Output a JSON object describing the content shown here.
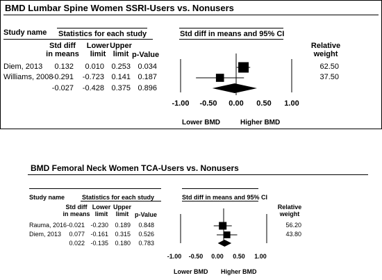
{
  "chart_data": [
    {
      "type": "forest",
      "title": "BMD Lumbar Spine Women SSRI-Users vs. Nonusers",
      "headers": {
        "study_name": "Study name",
        "stats": "Statistics for each study",
        "plot": "Std diff in means and 95% CI",
        "std_diff": [
          "Std diff",
          "in means"
        ],
        "lower": [
          "Lower",
          "limit"
        ],
        "upper": [
          "Upper",
          "limit"
        ],
        "pvalue": "p-Value",
        "weight": [
          "Relative",
          "weight"
        ]
      },
      "studies": [
        {
          "name": "Diem, 2013",
          "std_diff": "0.132",
          "lower": "0.010",
          "upper": "0.253",
          "p": "0.034",
          "weight": "62.50",
          "x": 0.132,
          "lo": 0.01,
          "hi": 0.253,
          "w": 62.5
        },
        {
          "name": "Williams, 2008",
          "std_diff": "-0.291",
          "lower": "-0.723",
          "upper": "0.141",
          "p": "0.187",
          "weight": "37.50",
          "x": -0.291,
          "lo": -0.723,
          "hi": 0.141,
          "w": 37.5
        }
      ],
      "pooled": {
        "std_diff": "-0.027",
        "lower": "-0.428",
        "upper": "0.375",
        "p": "0.896",
        "x": -0.027,
        "lo": -0.428,
        "hi": 0.375
      },
      "xticks": [
        "-1.00",
        "-0.50",
        "0.00",
        "0.50",
        "1.00"
      ],
      "xlim": [
        -1,
        1
      ],
      "favours_left": "Lower BMD",
      "favours_right": "Higher BMD"
    },
    {
      "type": "forest",
      "title": "BMD Femoral Neck Women TCA-Users vs. Nonusers",
      "headers": {
        "study_name": "Study name",
        "stats": "Statistics for each study",
        "plot": "Std diff in means and 95% CI",
        "std_diff": [
          "Std diff",
          "in means"
        ],
        "lower": [
          "Lower",
          "limit"
        ],
        "upper": [
          "Upper",
          "limit"
        ],
        "pvalue": "p-Value",
        "weight": [
          "Relative",
          "weight"
        ]
      },
      "studies": [
        {
          "name": "Rauma, 2016",
          "std_diff": "-0.021",
          "lower": "-0.230",
          "upper": "0.189",
          "p": "0.848",
          "weight": "56.20",
          "x": -0.021,
          "lo": -0.23,
          "hi": 0.189,
          "w": 56.2
        },
        {
          "name": "Diem, 2013",
          "std_diff": "0.077",
          "lower": "-0.161",
          "upper": "0.315",
          "p": "0.526",
          "weight": "43.80",
          "x": 0.077,
          "lo": -0.161,
          "hi": 0.315,
          "w": 43.8
        }
      ],
      "pooled": {
        "std_diff": "0.022",
        "lower": "-0.135",
        "upper": "0.180",
        "p": "0.783",
        "x": 0.022,
        "lo": -0.135,
        "hi": 0.18
      },
      "xticks": [
        "-1.00",
        "-0.50",
        "0.00",
        "0.50",
        "1.00"
      ],
      "xlim": [
        -1,
        1
      ],
      "favours_left": "Lower BMD",
      "favours_right": "Higher BMD"
    }
  ]
}
